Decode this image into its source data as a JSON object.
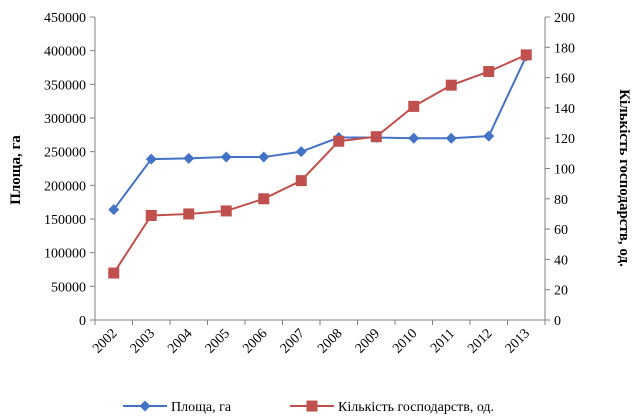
{
  "chart_data": {
    "type": "line",
    "categories": [
      "2002",
      "2003",
      "2004",
      "2005",
      "2006",
      "2007",
      "2008",
      "2009",
      "2010",
      "2011",
      "2012",
      "2013"
    ],
    "series": [
      {
        "name": "Площа, га",
        "axis": "left",
        "color": "#4472C4",
        "marker": "diamond",
        "values": [
          164000,
          239000,
          240000,
          242000,
          242000,
          250000,
          271000,
          271000,
          270000,
          270000,
          273000,
          392000
        ]
      },
      {
        "name": "Кількість господарств, од.",
        "axis": "right",
        "color": "#C0504D",
        "marker": "square",
        "values": [
          31,
          69,
          70,
          72,
          80,
          92,
          118,
          121,
          141,
          155,
          164,
          175
        ]
      }
    ],
    "ylabel": "Площа, га",
    "y2label": "Кількість господарств, од.",
    "ylim": [
      0,
      450000
    ],
    "y2lim": [
      0,
      200
    ],
    "yticks": [
      "0",
      "50000",
      "100000",
      "150000",
      "200000",
      "250000",
      "300000",
      "350000",
      "400000",
      "450000"
    ],
    "y2ticks": [
      "0",
      "20",
      "40",
      "60",
      "80",
      "100",
      "120",
      "140",
      "160",
      "180",
      "200"
    ],
    "legend_position": "bottom",
    "grid": false
  }
}
